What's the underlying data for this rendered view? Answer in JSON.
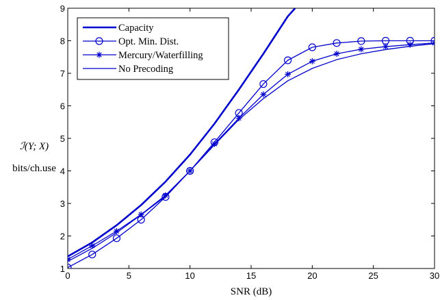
{
  "chart_data": {
    "type": "line",
    "xlabel": "SNR (dB)",
    "ylabel": "ℐ(Y; X)",
    "ylabel_unit": "bits/ch.use",
    "xlim": [
      0,
      30
    ],
    "ylim": [
      1,
      9
    ],
    "xticks": [
      0,
      5,
      10,
      15,
      20,
      25,
      30
    ],
    "yticks": [
      1,
      2,
      3,
      4,
      5,
      6,
      7,
      8,
      9
    ],
    "grid": false,
    "legend_position": "top-left",
    "color": "#0000cc",
    "x": [
      0,
      2,
      4,
      6,
      8,
      10,
      12,
      14,
      16,
      18,
      20,
      22,
      24,
      26,
      28,
      30
    ],
    "series": [
      {
        "name": "Capacity",
        "marker": "none",
        "line_width": "thick",
        "x": [
          0,
          2,
          4,
          6,
          8,
          10,
          12,
          14,
          16,
          18,
          18.6
        ],
        "values": [
          1.37,
          1.8,
          2.33,
          2.95,
          3.67,
          4.5,
          5.45,
          6.5,
          7.6,
          8.75,
          9.0
        ]
      },
      {
        "name": "Opt. Min. Dist.",
        "marker": "circle",
        "line_width": "thin",
        "values": [
          1.03,
          1.43,
          1.93,
          2.5,
          3.2,
          4.0,
          4.88,
          5.78,
          6.67,
          7.4,
          7.8,
          7.93,
          7.99,
          8.0,
          8.0,
          8.0
        ]
      },
      {
        "name": "Mercury/Waterfilling",
        "marker": "star",
        "line_width": "thin",
        "values": [
          1.28,
          1.7,
          2.15,
          2.66,
          3.25,
          4.0,
          4.83,
          5.62,
          6.35,
          6.97,
          7.37,
          7.6,
          7.74,
          7.82,
          7.88,
          7.93
        ]
      },
      {
        "name": "No Precoding",
        "marker": "none",
        "line_width": "thin",
        "values": [
          1.22,
          1.62,
          2.1,
          2.65,
          3.22,
          4.0,
          4.8,
          5.58,
          6.22,
          6.77,
          7.15,
          7.42,
          7.6,
          7.73,
          7.83,
          7.91
        ]
      }
    ]
  }
}
